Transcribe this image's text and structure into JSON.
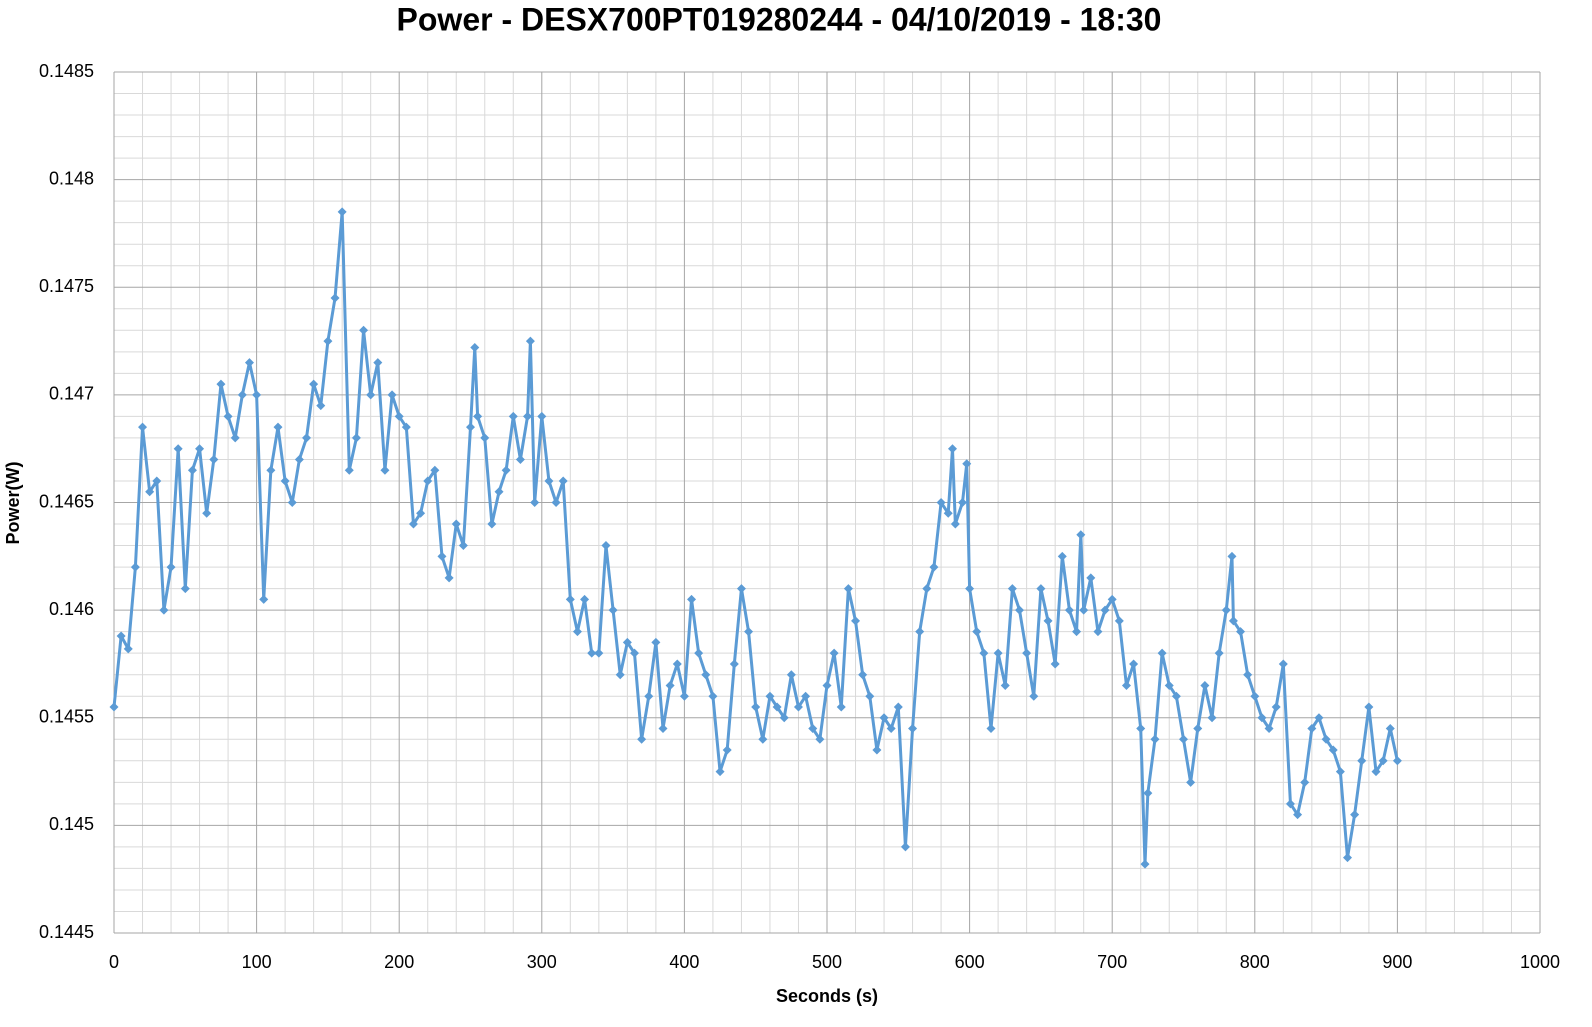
{
  "chart_data": {
    "type": "line",
    "title": "Power - DESX700PT019280244 - 04/10/2019 - 18:30",
    "x_label": "Seconds (s)",
    "y_label": "Power(W)",
    "xlim": [
      0,
      1000
    ],
    "xticks": [
      0,
      100,
      200,
      300,
      400,
      500,
      600,
      700,
      800,
      900,
      1000
    ],
    "ylim": [
      0.1445,
      0.1485
    ],
    "yticks": [
      0.1445,
      0.145,
      0.1455,
      0.146,
      0.1465,
      0.147,
      0.1475,
      0.148,
      0.1485
    ],
    "grid": true,
    "minor_grid_divisions": 5,
    "marker": "diamond",
    "color": "#5b9bd5",
    "x": [
      0,
      5,
      10,
      15,
      20,
      25,
      30,
      35,
      40,
      45,
      50,
      55,
      60,
      65,
      70,
      75,
      80,
      85,
      90,
      95,
      100,
      105,
      110,
      115,
      120,
      125,
      130,
      135,
      140,
      145,
      150,
      155,
      160,
      165,
      170,
      175,
      180,
      185,
      190,
      195,
      200,
      205,
      210,
      215,
      220,
      225,
      230,
      235,
      240,
      245,
      250,
      253,
      255,
      260,
      265,
      270,
      275,
      280,
      285,
      290,
      292,
      295,
      300,
      305,
      310,
      315,
      320,
      325,
      330,
      335,
      340,
      345,
      350,
      355,
      360,
      365,
      370,
      375,
      380,
      385,
      390,
      395,
      400,
      405,
      410,
      415,
      420,
      425,
      430,
      435,
      440,
      445,
      450,
      455,
      460,
      465,
      470,
      475,
      480,
      485,
      490,
      495,
      500,
      505,
      510,
      515,
      520,
      525,
      530,
      535,
      540,
      545,
      550,
      555,
      560,
      565,
      570,
      575,
      580,
      585,
      588,
      590,
      595,
      598,
      600,
      605,
      610,
      615,
      620,
      625,
      630,
      635,
      640,
      645,
      650,
      655,
      660,
      665,
      670,
      675,
      678,
      680,
      685,
      690,
      695,
      700,
      705,
      710,
      715,
      720,
      723,
      725,
      730,
      735,
      740,
      745,
      750,
      755,
      760,
      765,
      770,
      775,
      780,
      784,
      785,
      790,
      795,
      800,
      805,
      810,
      815,
      820,
      825,
      830,
      835,
      840,
      845,
      850,
      855,
      860,
      865,
      870,
      875,
      880,
      885,
      890,
      895,
      900
    ],
    "values": [
      0.14555,
      0.14588,
      0.14582,
      0.1462,
      0.14685,
      0.14655,
      0.1466,
      0.146,
      0.1462,
      0.14675,
      0.1461,
      0.14665,
      0.14675,
      0.14645,
      0.1467,
      0.14705,
      0.1469,
      0.1468,
      0.147,
      0.14715,
      0.147,
      0.14605,
      0.14665,
      0.14685,
      0.1466,
      0.1465,
      0.1467,
      0.1468,
      0.14705,
      0.14695,
      0.14725,
      0.14745,
      0.14785,
      0.14665,
      0.1468,
      0.1473,
      0.147,
      0.14715,
      0.14665,
      0.147,
      0.1469,
      0.14685,
      0.1464,
      0.14645,
      0.1466,
      0.14665,
      0.14625,
      0.14615,
      0.1464,
      0.1463,
      0.14685,
      0.14722,
      0.1469,
      0.1468,
      0.1464,
      0.14655,
      0.14665,
      0.1469,
      0.1467,
      0.1469,
      0.14725,
      0.1465,
      0.1469,
      0.1466,
      0.1465,
      0.1466,
      0.14605,
      0.1459,
      0.14605,
      0.1458,
      0.1458,
      0.1463,
      0.146,
      0.1457,
      0.14585,
      0.1458,
      0.1454,
      0.1456,
      0.14585,
      0.14545,
      0.14565,
      0.14575,
      0.1456,
      0.14605,
      0.1458,
      0.1457,
      0.1456,
      0.14525,
      0.14535,
      0.14575,
      0.1461,
      0.1459,
      0.14555,
      0.1454,
      0.1456,
      0.14555,
      0.1455,
      0.1457,
      0.14555,
      0.1456,
      0.14545,
      0.1454,
      0.14565,
      0.1458,
      0.14555,
      0.1461,
      0.14595,
      0.1457,
      0.1456,
      0.14535,
      0.1455,
      0.14545,
      0.14555,
      0.1449,
      0.14545,
      0.1459,
      0.1461,
      0.1462,
      0.1465,
      0.14645,
      0.14675,
      0.1464,
      0.1465,
      0.14668,
      0.1461,
      0.1459,
      0.1458,
      0.14545,
      0.1458,
      0.14565,
      0.1461,
      0.146,
      0.1458,
      0.1456,
      0.1461,
      0.14595,
      0.14575,
      0.14625,
      0.146,
      0.1459,
      0.14635,
      0.146,
      0.14615,
      0.1459,
      0.146,
      0.14605,
      0.14595,
      0.14565,
      0.14575,
      0.14545,
      0.14482,
      0.14515,
      0.1454,
      0.1458,
      0.14565,
      0.1456,
      0.1454,
      0.1452,
      0.14545,
      0.14565,
      0.1455,
      0.1458,
      0.146,
      0.14625,
      0.14595,
      0.1459,
      0.1457,
      0.1456,
      0.1455,
      0.14545,
      0.14555,
      0.14575,
      0.1451,
      0.14505,
      0.1452,
      0.14545,
      0.1455,
      0.1454,
      0.14535,
      0.14525,
      0.14485,
      0.14505,
      0.1453,
      0.14555,
      0.14525,
      0.1453,
      0.14545,
      0.1453
    ]
  }
}
